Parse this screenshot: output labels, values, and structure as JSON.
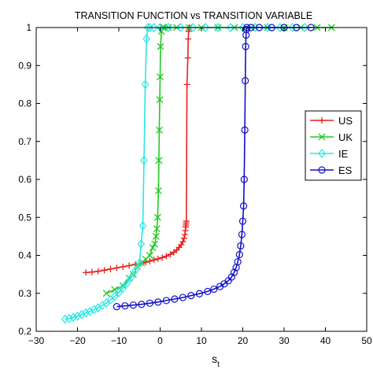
{
  "chart_data": {
    "type": "line",
    "title": "TRANSITION FUNCTION vs TRANSITION VARIABLE",
    "xlabel": "s",
    "xlabel_subscript": "t",
    "ylabel": "",
    "xlim": [
      -30,
      50
    ],
    "ylim": [
      0.2,
      1.0
    ],
    "xticks": [
      "−30",
      "−20",
      "−10",
      "0",
      "10",
      "20",
      "30",
      "40",
      "50"
    ],
    "xtick_values": [
      -30,
      -20,
      -10,
      0,
      10,
      20,
      30,
      40,
      50
    ],
    "yticks": [
      "0.2",
      "0.3",
      "0.4",
      "0.5",
      "0.6",
      "0.7",
      "0.8",
      "0.9",
      "1"
    ],
    "ytick_values": [
      0.2,
      0.3,
      0.4,
      0.5,
      0.6,
      0.7,
      0.8,
      0.9,
      1.0
    ],
    "grid": false,
    "legend_position": "right",
    "series": [
      {
        "name": "US",
        "color": "#e8201f",
        "marker": "plus",
        "x": [
          -18,
          -16.5,
          -15,
          -13.5,
          -12,
          -10.5,
          -9,
          -7.5,
          -6,
          -4.5,
          -3.5,
          -2.5,
          -1.5,
          -0.5,
          0.5,
          1.5,
          2.5,
          3.3,
          4.0,
          4.6,
          5.1,
          5.5,
          5.8,
          6.0,
          6.1,
          6.2,
          6.25,
          6.3,
          6.35,
          6.5,
          6.7,
          6.8,
          6.9,
          7.0,
          7.1
        ],
        "y": [
          0.355,
          0.356,
          0.358,
          0.361,
          0.364,
          0.367,
          0.37,
          0.373,
          0.376,
          0.379,
          0.382,
          0.385,
          0.388,
          0.391,
          0.394,
          0.398,
          0.403,
          0.408,
          0.414,
          0.421,
          0.428,
          0.436,
          0.445,
          0.455,
          0.465,
          0.475,
          0.48,
          0.485,
          0.49,
          0.85,
          0.92,
          0.97,
          0.99,
          1.0,
          1.0
        ]
      },
      {
        "name": "UK",
        "color": "#22c922",
        "marker": "x",
        "x": [
          -13,
          -11,
          -9,
          -7.5,
          -6.5,
          -5.5,
          -4.5,
          -3.5,
          -2.5,
          -1.8,
          -1.3,
          -1.0,
          -0.8,
          -0.6,
          -0.4,
          -0.3,
          -0.2,
          -0.1,
          0,
          0.1,
          0.3,
          0.6,
          1,
          2,
          4,
          7,
          10,
          14,
          18,
          22,
          26,
          30,
          34,
          38,
          41.5
        ],
        "y": [
          0.3,
          0.31,
          0.32,
          0.34,
          0.35,
          0.37,
          0.38,
          0.39,
          0.4,
          0.42,
          0.43,
          0.45,
          0.47,
          0.5,
          0.57,
          0.65,
          0.73,
          0.81,
          0.87,
          0.95,
          0.99,
          1.0,
          1.0,
          1.0,
          1.0,
          1.0,
          1.0,
          1.0,
          1.0,
          1.0,
          1.0,
          1.0,
          1.0,
          1.0,
          1.0
        ]
      },
      {
        "name": "IE",
        "color": "#2ae6e6",
        "marker": "diamond",
        "x": [
          -23,
          -22,
          -21,
          -20,
          -19,
          -18,
          -17,
          -16,
          -15,
          -14,
          -13,
          -12,
          -11,
          -10,
          -9,
          -8,
          -7,
          -6,
          -5,
          -4.6,
          -4.2,
          -3.9,
          -3.6,
          -3.3,
          -3.0,
          -2.5,
          -1.5,
          0,
          2,
          5,
          8,
          11,
          14,
          17,
          20,
          23,
          26,
          29,
          32,
          35
        ],
        "y": [
          0.232,
          0.234,
          0.237,
          0.24,
          0.244,
          0.248,
          0.252,
          0.257,
          0.262,
          0.268,
          0.275,
          0.283,
          0.292,
          0.302,
          0.314,
          0.327,
          0.342,
          0.36,
          0.38,
          0.43,
          0.478,
          0.65,
          0.85,
          0.97,
          1.0,
          1.0,
          1.0,
          1.0,
          1.0,
          1.0,
          1.0,
          1.0,
          1.0,
          1.0,
          1.0,
          1.0,
          1.0,
          1.0,
          1.0,
          1.0
        ]
      },
      {
        "name": "ES",
        "color": "#1010c8",
        "marker": "circle",
        "x": [
          -10.5,
          -8.5,
          -6.5,
          -4.5,
          -2.5,
          -0.5,
          1.5,
          3.5,
          5.5,
          7.5,
          9.5,
          11.5,
          13,
          14.5,
          15.5,
          16.5,
          17.3,
          17.9,
          18.4,
          18.8,
          19.2,
          19.5,
          19.8,
          20.0,
          20.2,
          20.35,
          20.5,
          20.6,
          20.7,
          20.8,
          20.9,
          21.0,
          22,
          24,
          27,
          30,
          33,
          36.5
        ],
        "y": [
          0.265,
          0.267,
          0.269,
          0.271,
          0.274,
          0.277,
          0.281,
          0.285,
          0.289,
          0.294,
          0.299,
          0.305,
          0.311,
          0.318,
          0.325,
          0.333,
          0.343,
          0.355,
          0.368,
          0.383,
          0.402,
          0.425,
          0.455,
          0.49,
          0.53,
          0.6,
          0.73,
          0.86,
          0.95,
          0.98,
          0.995,
          1.0,
          1.0,
          1.0,
          1.0,
          1.0,
          1.0,
          1.0
        ]
      }
    ]
  }
}
